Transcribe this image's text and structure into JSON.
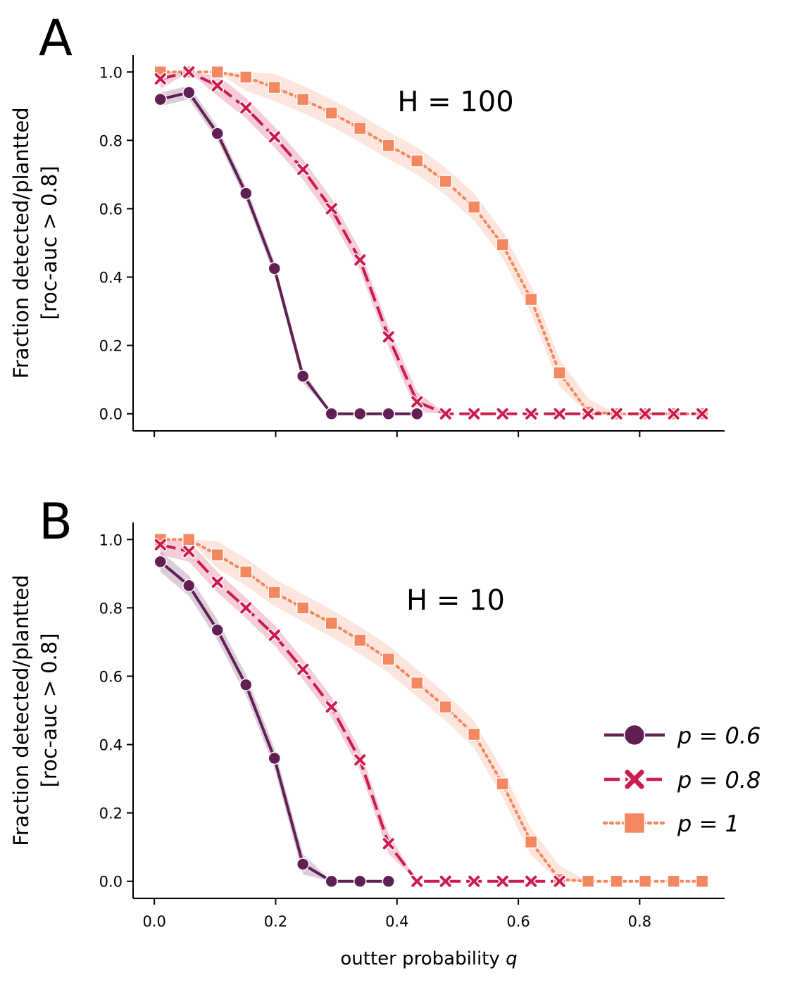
{
  "chart_data": [
    {
      "type": "line",
      "panel_letter": "A",
      "annotation": "H = 100",
      "xlabel": "outter probability q",
      "ylabel_line1": "Fraction detected/plantted",
      "ylabel_line2": "[roc-auc > 0.8]",
      "xlim": [
        -0.035,
        0.94
      ],
      "ylim": [
        -0.05,
        1.05
      ],
      "xticks": [
        0.0,
        0.2,
        0.4,
        0.6,
        0.8
      ],
      "xtick_labels": [
        "",
        "",
        "",
        "",
        ""
      ],
      "yticks": [
        0.0,
        0.2,
        0.4,
        0.6,
        0.8,
        1.0
      ],
      "ytick_labels": [
        "0.0",
        "0.2",
        "0.4",
        "0.6",
        "0.8",
        "1.0"
      ],
      "x": [
        0.01,
        0.057,
        0.104,
        0.151,
        0.198,
        0.245,
        0.292,
        0.339,
        0.386,
        0.433,
        0.48,
        0.527,
        0.574,
        0.621,
        0.668,
        0.715,
        0.762,
        0.809,
        0.856,
        0.903
      ],
      "series": [
        {
          "name": "p = 0.6",
          "color": "#611f53",
          "marker": "circle",
          "dash": "solid",
          "values": [
            0.92,
            0.94,
            0.82,
            0.645,
            0.425,
            0.11,
            0.0,
            0.0,
            0.0,
            0.0,
            null,
            null,
            null,
            null,
            null,
            null,
            null,
            null,
            null,
            null
          ],
          "band": 0.02
        },
        {
          "name": "p = 0.8",
          "color": "#cb1b4f",
          "marker": "x",
          "dash": "dashed",
          "values": [
            0.98,
            1.0,
            0.96,
            0.895,
            0.81,
            0.715,
            0.6,
            0.45,
            0.225,
            0.035,
            0.0,
            0.0,
            0.0,
            0.0,
            0.0,
            0.0,
            0.0,
            0.0,
            0.0,
            0.0
          ],
          "band": 0.03
        },
        {
          "name": "p = 1",
          "color": "#f3875f",
          "marker": "square",
          "dash": "dotted",
          "values": [
            1.0,
            1.0,
            1.0,
            0.985,
            0.955,
            0.92,
            0.88,
            0.835,
            0.785,
            0.74,
            0.68,
            0.605,
            0.495,
            0.335,
            0.12,
            0.005,
            0.0,
            0.0,
            0.0,
            0.0
          ],
          "band": 0.04
        }
      ]
    },
    {
      "type": "line",
      "panel_letter": "B",
      "annotation": "H = 10",
      "xlabel": "outter probability q",
      "ylabel_line1": "Fraction detected/plantted",
      "ylabel_line2": "[roc-auc > 0.8]",
      "xlim": [
        -0.035,
        0.94
      ],
      "ylim": [
        -0.05,
        1.05
      ],
      "xticks": [
        0.0,
        0.2,
        0.4,
        0.6,
        0.8
      ],
      "xtick_labels": [
        "0.0",
        "0.2",
        "0.4",
        "0.6",
        "0.8"
      ],
      "yticks": [
        0.0,
        0.2,
        0.4,
        0.6,
        0.8,
        1.0
      ],
      "ytick_labels": [
        "0.0",
        "0.2",
        "0.4",
        "0.6",
        "0.8",
        "1.0"
      ],
      "x": [
        0.01,
        0.057,
        0.104,
        0.151,
        0.198,
        0.245,
        0.292,
        0.339,
        0.386,
        0.433,
        0.48,
        0.527,
        0.574,
        0.621,
        0.668,
        0.715,
        0.762,
        0.809,
        0.856,
        0.903
      ],
      "series": [
        {
          "name": "p = 0.6",
          "color": "#611f53",
          "marker": "circle",
          "dash": "solid",
          "values": [
            0.935,
            0.865,
            0.735,
            0.575,
            0.36,
            0.05,
            0.0,
            0.0,
            0.0,
            null,
            null,
            null,
            null,
            null,
            null,
            null,
            null,
            null,
            null,
            null
          ],
          "band": 0.03
        },
        {
          "name": "p = 0.8",
          "color": "#cb1b4f",
          "marker": "x",
          "dash": "dashed",
          "values": [
            0.985,
            0.965,
            0.875,
            0.8,
            0.72,
            0.62,
            0.51,
            0.355,
            0.11,
            0.0,
            0.0,
            0.0,
            0.0,
            0.0,
            0.0,
            null,
            null,
            null,
            null,
            null
          ],
          "band": 0.03
        },
        {
          "name": "p = 1",
          "color": "#f3875f",
          "marker": "square",
          "dash": "dotted",
          "values": [
            1.0,
            1.0,
            0.955,
            0.905,
            0.845,
            0.8,
            0.755,
            0.705,
            0.65,
            0.58,
            0.51,
            0.43,
            0.285,
            0.115,
            0.005,
            0.0,
            0.0,
            0.0,
            0.0,
            0.0
          ],
          "band": 0.04
        }
      ]
    }
  ],
  "legend": {
    "placement": "lower-right of panel B",
    "items": [
      {
        "label": "p = 0.6",
        "color": "#611f53",
        "marker": "circle",
        "dash": "solid"
      },
      {
        "label": "p = 0.8",
        "color": "#cb1b4f",
        "marker": "x",
        "dash": "dashed"
      },
      {
        "label": "p = 1",
        "color": "#f3875f",
        "marker": "square",
        "dash": "dotted"
      }
    ]
  }
}
